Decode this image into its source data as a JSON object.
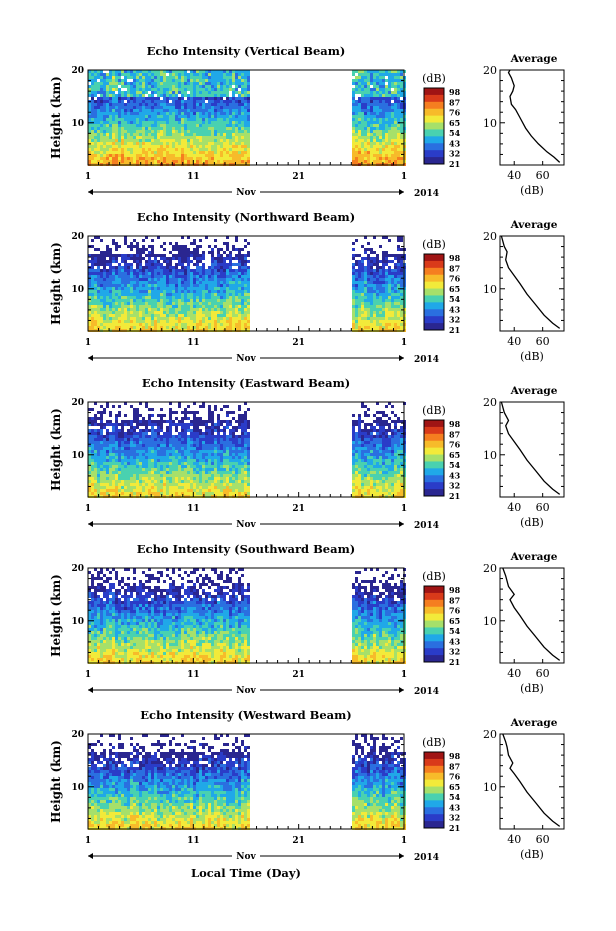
{
  "chart_data": {
    "type": "heatmap",
    "figure_xlabel": "Local Time (Day)",
    "panels": [
      {
        "title": "Echo Intensity (Vertical Beam)",
        "avg_profile": [
          [
            72,
            2.5
          ],
          [
            68,
            3.5
          ],
          [
            63,
            4.5
          ],
          [
            57,
            6
          ],
          [
            52,
            7.5
          ],
          [
            48,
            9
          ],
          [
            44,
            11
          ],
          [
            41,
            12.5
          ],
          [
            38,
            13.5
          ],
          [
            37,
            15
          ],
          [
            39,
            16
          ],
          [
            40,
            17
          ],
          [
            38,
            18.5
          ],
          [
            36,
            19.5
          ],
          [
            37,
            20
          ]
        ]
      },
      {
        "title": "Echo Intensity (Northward Beam)",
        "avg_profile": [
          [
            72,
            2.5
          ],
          [
            67,
            3.5
          ],
          [
            61,
            5
          ],
          [
            55,
            7
          ],
          [
            49,
            9
          ],
          [
            44,
            11
          ],
          [
            40,
            12.5
          ],
          [
            36,
            14
          ],
          [
            34,
            15.5
          ],
          [
            35,
            17
          ],
          [
            33,
            18
          ],
          [
            31,
            20
          ]
        ]
      },
      {
        "title": "Echo Intensity (Eastward Beam)",
        "avg_profile": [
          [
            72,
            2.5
          ],
          [
            67,
            3.5
          ],
          [
            61,
            5
          ],
          [
            55,
            7
          ],
          [
            49,
            9
          ],
          [
            44,
            11
          ],
          [
            40,
            12.5
          ],
          [
            36,
            14
          ],
          [
            34,
            15.5
          ],
          [
            36,
            16.5
          ],
          [
            33,
            18
          ],
          [
            31,
            20
          ]
        ]
      },
      {
        "title": "Echo Intensity (Southward Beam)",
        "avg_profile": [
          [
            72,
            2.5
          ],
          [
            67,
            3.5
          ],
          [
            61,
            5
          ],
          [
            55,
            7
          ],
          [
            49,
            9
          ],
          [
            44,
            11
          ],
          [
            40,
            12.5
          ],
          [
            37,
            14
          ],
          [
            40,
            15
          ],
          [
            36,
            16.5
          ],
          [
            34,
            18.5
          ],
          [
            32,
            20
          ]
        ]
      },
      {
        "title": "Echo Intensity (Westward Beam)",
        "avg_profile": [
          [
            72,
            2.5
          ],
          [
            67,
            3.5
          ],
          [
            61,
            5
          ],
          [
            55,
            7
          ],
          [
            49,
            9
          ],
          [
            44,
            11
          ],
          [
            40,
            12.5
          ],
          [
            37,
            13.5
          ],
          [
            39,
            14.5
          ],
          [
            36,
            16
          ],
          [
            35,
            17.5
          ],
          [
            34,
            18.5
          ],
          [
            32,
            20
          ]
        ]
      }
    ],
    "ylabel": "Height (km)",
    "yticks": [
      "20",
      "10"
    ],
    "ylim_km": [
      2,
      20
    ],
    "xticks": [
      "1",
      "11",
      "21",
      "1"
    ],
    "month_label": "Nov",
    "year_label": "2014",
    "data_gap_days": [
      16.5,
      26
    ],
    "colorbar": {
      "unit": "(dB)",
      "labels": [
        "98",
        "87",
        "76",
        "65",
        "54",
        "43",
        "32",
        "21"
      ],
      "colors": [
        "#a01414",
        "#d93a1a",
        "#f57e20",
        "#f7bb2a",
        "#f2ea3a",
        "#a6e06a",
        "#49d1b0",
        "#20a8e8",
        "#2a6fe0",
        "#2a3cc8",
        "#2a2690"
      ]
    },
    "average": {
      "title": "Average",
      "xlabel": "(dB)",
      "xticks": [
        "40",
        "60"
      ],
      "xlim": [
        30,
        75
      ],
      "yticks": [
        "20",
        "10"
      ],
      "ylim": [
        2,
        20
      ]
    }
  }
}
